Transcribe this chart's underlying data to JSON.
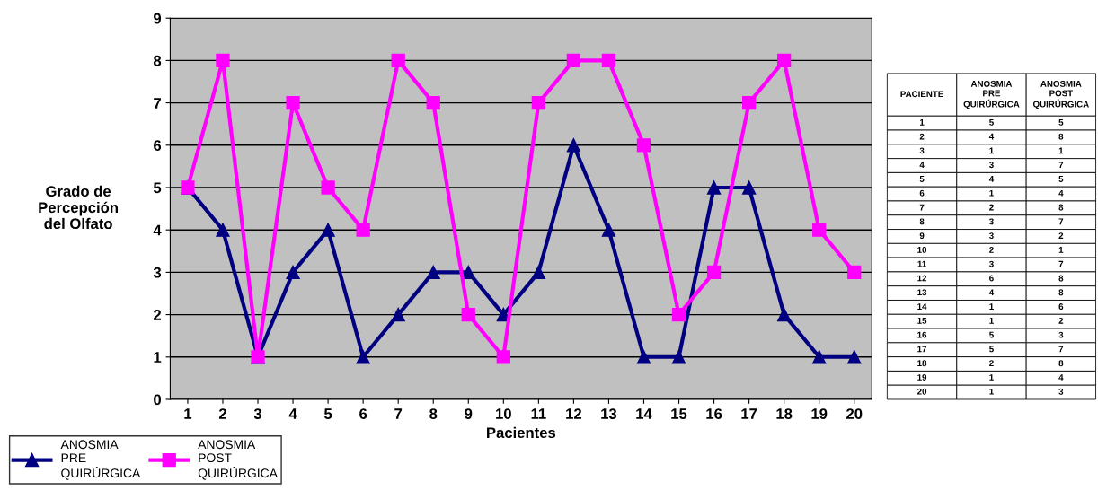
{
  "chart_data": {
    "type": "line",
    "xlabel": "Pacientes",
    "ylabel": "Grado de\nPercepción\ndel Olfato",
    "categories": [
      "1",
      "2",
      "3",
      "4",
      "5",
      "6",
      "7",
      "8",
      "9",
      "10",
      "11",
      "12",
      "13",
      "14",
      "15",
      "16",
      "17",
      "18",
      "19",
      "20"
    ],
    "series": [
      {
        "name": "ANOSMIA PRE QUIRÚRGICA",
        "color": "#000080",
        "marker": "triangle",
        "values": [
          5,
          4,
          1,
          3,
          4,
          1,
          2,
          3,
          3,
          2,
          3,
          6,
          4,
          1,
          1,
          5,
          5,
          2,
          1,
          1
        ]
      },
      {
        "name": "ANOSMIA POST QUIRÚRGICA",
        "color": "#ff00ff",
        "marker": "square",
        "values": [
          5,
          8,
          1,
          7,
          5,
          4,
          8,
          7,
          2,
          1,
          7,
          8,
          8,
          6,
          2,
          3,
          7,
          8,
          4,
          3
        ]
      }
    ],
    "ylim": [
      0,
      9
    ],
    "yticks": [
      0,
      1,
      2,
      3,
      4,
      5,
      6,
      7,
      8,
      9
    ],
    "grid": "y",
    "legend": "bottom left",
    "annotations": [
      "PACIENTE"
    ]
  }
}
